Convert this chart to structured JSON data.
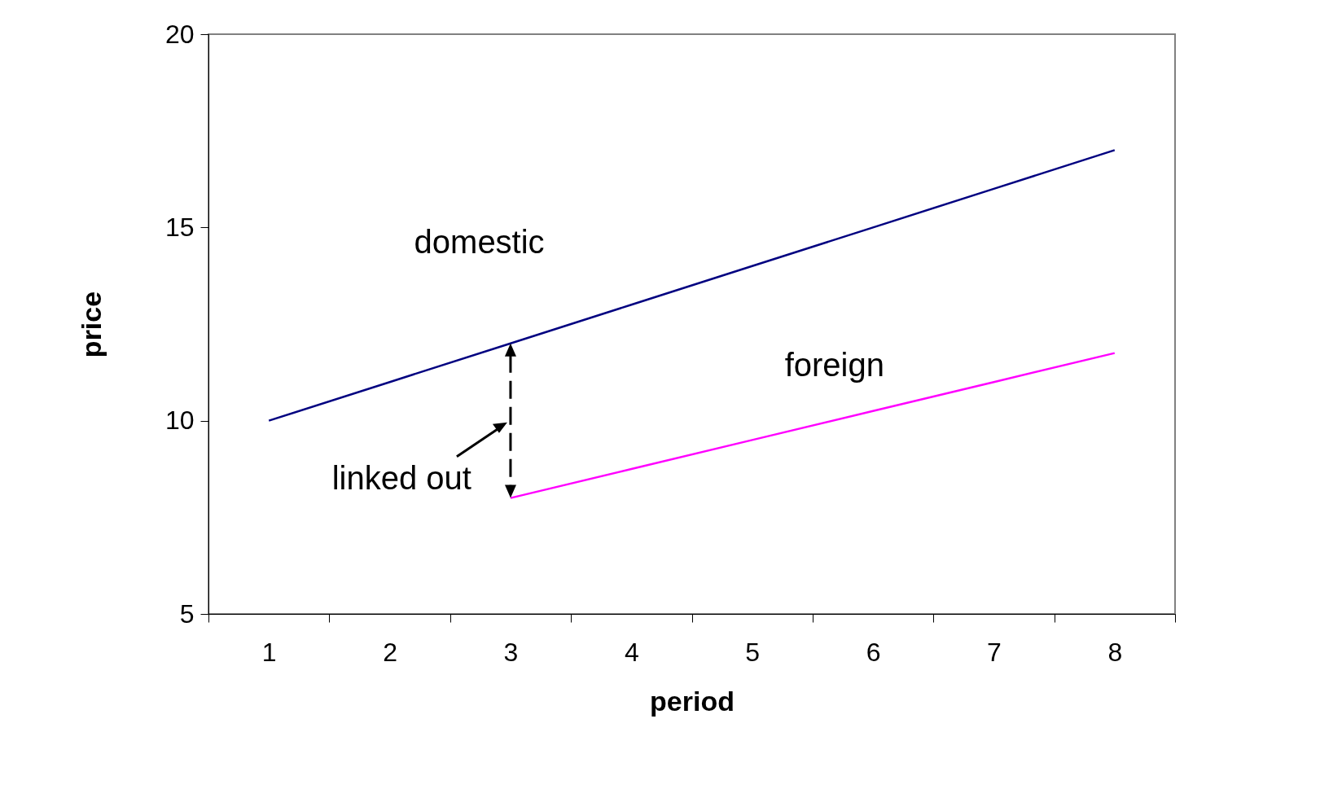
{
  "chart_data": {
    "type": "line",
    "xlabel": "period",
    "ylabel": "price",
    "categories": [
      "1",
      "2",
      "3",
      "4",
      "5",
      "6",
      "7",
      "8"
    ],
    "series": [
      {
        "name": "domestic",
        "color": "#000080",
        "values": [
          10,
          11,
          12,
          13,
          14,
          15,
          16,
          17
        ]
      },
      {
        "name": "foreign",
        "color": "#ff00ff",
        "values": [
          null,
          null,
          8,
          8.75,
          9.5,
          10.25,
          11,
          11.75
        ]
      }
    ],
    "ylim": [
      5,
      20
    ],
    "yticks": [
      5,
      10,
      15,
      20
    ],
    "grid": false,
    "legend": false,
    "marker": "none",
    "line_style": "solid",
    "annotations": [
      "linked out"
    ]
  }
}
